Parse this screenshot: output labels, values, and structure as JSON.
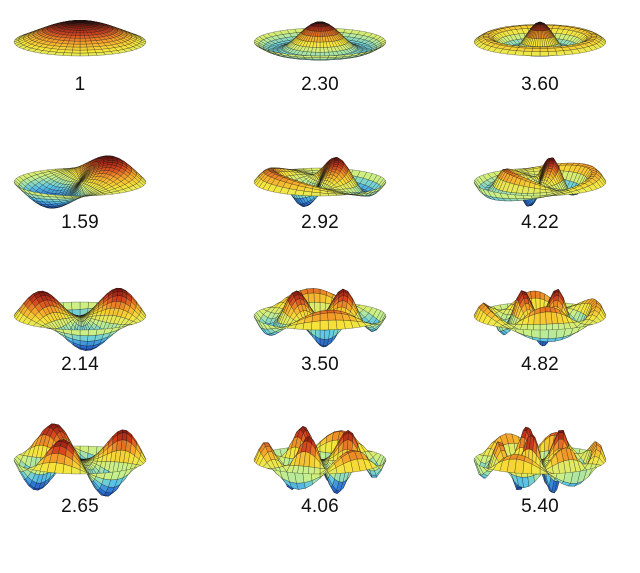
{
  "figure": {
    "rows": [
      {
        "modes": [
          {
            "label": "1",
            "m": 0,
            "n": 0
          },
          {
            "label": "2.30",
            "m": 0,
            "n": 1
          },
          {
            "label": "3.60",
            "m": 0,
            "n": 2
          }
        ]
      },
      {
        "modes": [
          {
            "label": "1.59",
            "m": 1,
            "n": 0
          },
          {
            "label": "2.92",
            "m": 1,
            "n": 1
          },
          {
            "label": "4.22",
            "m": 1,
            "n": 2
          }
        ]
      },
      {
        "modes": [
          {
            "label": "2.14",
            "m": 2,
            "n": 0
          },
          {
            "label": "3.50",
            "m": 2,
            "n": 1
          },
          {
            "label": "4.82",
            "m": 2,
            "n": 2
          }
        ]
      },
      {
        "modes": [
          {
            "label": "2.65",
            "m": 3,
            "n": 0
          },
          {
            "label": "4.06",
            "m": 3,
            "n": 1
          },
          {
            "label": "5.40",
            "m": 3,
            "n": 2
          }
        ]
      }
    ],
    "colormap": [
      "#1b3fa8",
      "#2e78d6",
      "#5ec9e6",
      "#c9f08a",
      "#f7e43a",
      "#f4a22a",
      "#d2401e",
      "#7a1410"
    ],
    "mesh_color": "#111111"
  }
}
